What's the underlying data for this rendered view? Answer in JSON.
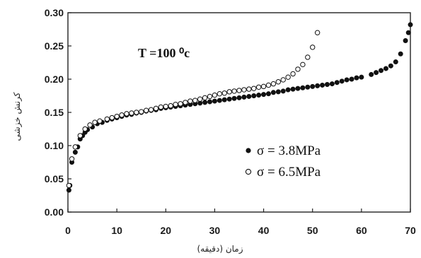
{
  "chart_data": {
    "type": "scatter",
    "title": "",
    "xlabel": "زمان (دقیقه)",
    "ylabel": "کرنش خزشی",
    "xlim": [
      0,
      70
    ],
    "ylim": [
      0,
      0.3
    ],
    "x_ticks": [
      "0",
      "10",
      "20",
      "30",
      "40",
      "50",
      "60",
      "70"
    ],
    "y_ticks": [
      "0.00",
      "0.05",
      "0.10",
      "0.15",
      "0.20",
      "0.25",
      "0.30"
    ],
    "annotation": "T =100 ⁰c",
    "legend_position": "right",
    "series": [
      {
        "name": "σ = 3.8MPa",
        "marker": "filled-circle",
        "color": "#111111",
        "points": [
          [
            0.2,
            0.033
          ],
          [
            0.4,
            0.04
          ],
          [
            0.8,
            0.075
          ],
          [
            1.5,
            0.09
          ],
          [
            2,
            0.098
          ],
          [
            2.5,
            0.11
          ],
          [
            3,
            0.115
          ],
          [
            3.5,
            0.12
          ],
          [
            4,
            0.124
          ],
          [
            5,
            0.128
          ],
          [
            6,
            0.133
          ],
          [
            7,
            0.135
          ],
          [
            8,
            0.138
          ],
          [
            9,
            0.14
          ],
          [
            10,
            0.142
          ],
          [
            11,
            0.144
          ],
          [
            12,
            0.146
          ],
          [
            13,
            0.147
          ],
          [
            14,
            0.149
          ],
          [
            15,
            0.15
          ],
          [
            16,
            0.152
          ],
          [
            17,
            0.153
          ],
          [
            18,
            0.154
          ],
          [
            19,
            0.156
          ],
          [
            20,
            0.157
          ],
          [
            21,
            0.158
          ],
          [
            22,
            0.159
          ],
          [
            23,
            0.16
          ],
          [
            24,
            0.161
          ],
          [
            25,
            0.162
          ],
          [
            26,
            0.163
          ],
          [
            27,
            0.164
          ],
          [
            28,
            0.165
          ],
          [
            29,
            0.166
          ],
          [
            30,
            0.167
          ],
          [
            31,
            0.168
          ],
          [
            32,
            0.169
          ],
          [
            33,
            0.17
          ],
          [
            34,
            0.171
          ],
          [
            35,
            0.172
          ],
          [
            36,
            0.173
          ],
          [
            37,
            0.174
          ],
          [
            38,
            0.175
          ],
          [
            39,
            0.176
          ],
          [
            40,
            0.177
          ],
          [
            41,
            0.178
          ],
          [
            42,
            0.18
          ],
          [
            43,
            0.181
          ],
          [
            44,
            0.182
          ],
          [
            45,
            0.184
          ],
          [
            46,
            0.185
          ],
          [
            47,
            0.186
          ],
          [
            48,
            0.187
          ],
          [
            49,
            0.188
          ],
          [
            50,
            0.189
          ],
          [
            51,
            0.19
          ],
          [
            52,
            0.191
          ],
          [
            53,
            0.192
          ],
          [
            54,
            0.193
          ],
          [
            55,
            0.195
          ],
          [
            56,
            0.197
          ],
          [
            57,
            0.199
          ],
          [
            58,
            0.2
          ],
          [
            59,
            0.202
          ],
          [
            60,
            0.203
          ],
          [
            62,
            0.207
          ],
          [
            63,
            0.21
          ],
          [
            64,
            0.213
          ],
          [
            65,
            0.216
          ],
          [
            66,
            0.22
          ],
          [
            67,
            0.226
          ],
          [
            68,
            0.238
          ],
          [
            69,
            0.258
          ],
          [
            69.6,
            0.27
          ],
          [
            70,
            0.282
          ]
        ]
      },
      {
        "name": "σ = 6.5MPa",
        "marker": "open-circle",
        "color": "#111111",
        "points": [
          [
            0.2,
            0.04
          ],
          [
            0.8,
            0.08
          ],
          [
            1.5,
            0.098
          ],
          [
            2.5,
            0.115
          ],
          [
            3.5,
            0.125
          ],
          [
            4.5,
            0.131
          ],
          [
            5.5,
            0.135
          ],
          [
            6.5,
            0.137
          ],
          [
            8,
            0.14
          ],
          [
            9,
            0.142
          ],
          [
            10,
            0.144
          ],
          [
            11,
            0.146
          ],
          [
            12,
            0.148
          ],
          [
            13,
            0.149
          ],
          [
            14,
            0.15
          ],
          [
            15,
            0.151
          ],
          [
            16,
            0.153
          ],
          [
            17,
            0.154
          ],
          [
            18,
            0.156
          ],
          [
            19,
            0.158
          ],
          [
            20,
            0.159
          ],
          [
            21,
            0.16
          ],
          [
            22,
            0.162
          ],
          [
            23,
            0.163
          ],
          [
            24,
            0.165
          ],
          [
            25,
            0.167
          ],
          [
            26,
            0.168
          ],
          [
            27,
            0.17
          ],
          [
            28,
            0.172
          ],
          [
            29,
            0.174
          ],
          [
            30,
            0.176
          ],
          [
            31,
            0.178
          ],
          [
            32,
            0.179
          ],
          [
            33,
            0.181
          ],
          [
            34,
            0.182
          ],
          [
            35,
            0.183
          ],
          [
            36,
            0.184
          ],
          [
            37,
            0.185
          ],
          [
            38,
            0.186
          ],
          [
            39,
            0.188
          ],
          [
            40,
            0.189
          ],
          [
            41,
            0.191
          ],
          [
            42,
            0.193
          ],
          [
            43,
            0.196
          ],
          [
            44,
            0.199
          ],
          [
            45,
            0.203
          ],
          [
            46,
            0.208
          ],
          [
            47,
            0.215
          ],
          [
            48,
            0.222
          ],
          [
            49,
            0.233
          ],
          [
            50,
            0.248
          ],
          [
            51,
            0.27
          ]
        ]
      }
    ]
  }
}
